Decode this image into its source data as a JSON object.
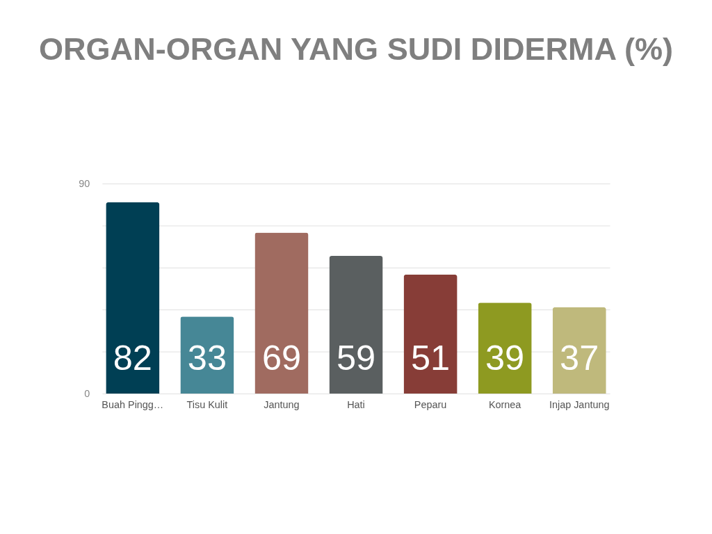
{
  "chart_data": {
    "type": "bar",
    "title": "ORGAN-ORGAN YANG SUDI DIDERMA (%)",
    "categories": [
      "Buah Pingg…",
      "Tisu Kulit",
      "Jantung",
      "Hati",
      "Peparu",
      "Kornea",
      "Injap Jantung"
    ],
    "values": [
      82,
      33,
      69,
      59,
      51,
      39,
      37
    ],
    "colors": [
      "#003f54",
      "#468796",
      "#a06b60",
      "#5a5f60",
      "#873d37",
      "#8e9a21",
      "#bfb97c"
    ],
    "ylim": [
      0,
      90
    ],
    "yticks": [
      0,
      {
        "value": 18,
        "label": null
      },
      {
        "value": 36,
        "label": null
      },
      {
        "value": 54,
        "label": null
      },
      {
        "value": 72,
        "label": null
      },
      90
    ],
    "grid": "y",
    "data_labels": true,
    "legend": false
  }
}
